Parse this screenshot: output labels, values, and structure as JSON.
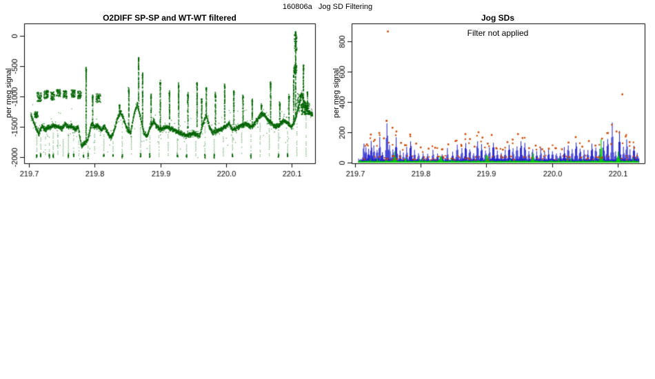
{
  "page": {
    "background": "#ffffff",
    "main_title": "160806a   Jog SD Filtering"
  },
  "chart_data": [
    {
      "type": "scatter",
      "title": "O2DIFF SP-SP and WT-WT filtered",
      "ylabel": "per meg signal",
      "xlabel": "",
      "xlim": [
        219.6926,
        220.1357
      ],
      "ylim": [
        -2100,
        205
      ],
      "x_data_range": [
        219.703,
        220.132
      ],
      "xticks": {
        "values": [
          219.7,
          219.8,
          219.9,
          220.0,
          220.1
        ],
        "labels": [
          "219.7",
          "219.8",
          "219.9",
          "220.0",
          "220.1"
        ]
      },
      "yticks": {
        "values": [
          0,
          -500,
          -1000,
          -1500,
          -2000
        ],
        "labels": [
          "0",
          "-500",
          "-1000",
          "-1500",
          "-2000"
        ]
      },
      "grid": false,
      "point_color": "#006400",
      "dropout_floor": -2000,
      "baseline_keypoints": [
        [
          219.703,
          -1300
        ],
        [
          219.71,
          -1500
        ],
        [
          219.715,
          -1620
        ],
        [
          219.72,
          -1480
        ],
        [
          219.725,
          -1550
        ],
        [
          219.73,
          -1500
        ],
        [
          219.74,
          -1480
        ],
        [
          219.75,
          -1520
        ],
        [
          219.755,
          -1450
        ],
        [
          219.76,
          -1500
        ],
        [
          219.765,
          -1480
        ],
        [
          219.77,
          -1550
        ],
        [
          219.775,
          -1500
        ],
        [
          219.78,
          -1820
        ],
        [
          219.79,
          -1700
        ],
        [
          219.795,
          -1450
        ],
        [
          219.8,
          -1500
        ],
        [
          219.805,
          -1480
        ],
        [
          219.81,
          -1550
        ],
        [
          219.815,
          -1500
        ],
        [
          219.82,
          -1600
        ],
        [
          219.825,
          -1680
        ],
        [
          219.83,
          -1550
        ],
        [
          219.835,
          -1350
        ],
        [
          219.84,
          -1250
        ],
        [
          219.845,
          -1400
        ],
        [
          219.85,
          -1550
        ],
        [
          219.855,
          -1600
        ],
        [
          219.86,
          -1300
        ],
        [
          219.865,
          -1120
        ],
        [
          219.87,
          -1350
        ],
        [
          219.875,
          -1600
        ],
        [
          219.88,
          -1650
        ],
        [
          219.885,
          -1500
        ],
        [
          219.89,
          -1400
        ],
        [
          219.895,
          -1500
        ],
        [
          219.9,
          -1550
        ],
        [
          219.91,
          -1500
        ],
        [
          219.92,
          -1550
        ],
        [
          219.93,
          -1600
        ],
        [
          219.94,
          -1650
        ],
        [
          219.95,
          -1600
        ],
        [
          219.96,
          -1650
        ],
        [
          219.965,
          -1450
        ],
        [
          219.97,
          -1320
        ],
        [
          219.975,
          -1500
        ],
        [
          219.98,
          -1600
        ],
        [
          219.99,
          -1550
        ],
        [
          220.0,
          -1500
        ],
        [
          220.005,
          -1450
        ],
        [
          220.01,
          -1550
        ],
        [
          220.02,
          -1500
        ],
        [
          220.03,
          -1450
        ],
        [
          220.04,
          -1500
        ],
        [
          220.045,
          -1420
        ],
        [
          220.05,
          -1350
        ],
        [
          220.055,
          -1280
        ],
        [
          220.06,
          -1320
        ],
        [
          220.065,
          -1400
        ],
        [
          220.07,
          -1450
        ],
        [
          220.075,
          -1500
        ],
        [
          220.08,
          -1480
        ],
        [
          220.085,
          -1420
        ],
        [
          220.09,
          -1400
        ],
        [
          220.095,
          -1450
        ],
        [
          220.1,
          -1500
        ],
        [
          220.105,
          -1400
        ],
        [
          220.11,
          -1200
        ],
        [
          220.115,
          -950
        ],
        [
          220.12,
          -1100
        ],
        [
          220.125,
          -1250
        ],
        [
          220.132,
          -1300
        ]
      ],
      "spikes": [
        [
          219.787,
          -550
        ],
        [
          219.797,
          -1000
        ],
        [
          219.838,
          -1150
        ],
        [
          219.852,
          -900
        ],
        [
          219.867,
          -380
        ],
        [
          219.873,
          -650
        ],
        [
          219.886,
          -1000
        ],
        [
          219.9,
          -780
        ],
        [
          219.914,
          -950
        ],
        [
          219.928,
          -820
        ],
        [
          219.942,
          -980
        ],
        [
          219.956,
          -790
        ],
        [
          219.963,
          -1060
        ],
        [
          219.97,
          -880
        ],
        [
          219.984,
          -980
        ],
        [
          219.998,
          -830
        ],
        [
          220.012,
          -930
        ],
        [
          220.026,
          -1020
        ],
        [
          220.04,
          -1080
        ],
        [
          220.054,
          -1150
        ],
        [
          220.068,
          -790
        ],
        [
          220.082,
          -1120
        ],
        [
          220.096,
          -1000
        ],
        [
          220.103,
          -680
        ],
        [
          220.106,
          50
        ],
        [
          220.118,
          -520
        ],
        [
          220.124,
          -950
        ]
      ],
      "dropout_columns": [
        219.712,
        219.718,
        219.725,
        219.731,
        219.737,
        219.744,
        219.752,
        219.76,
        219.768,
        219.776,
        219.783,
        219.79,
        219.8,
        219.814,
        219.828,
        219.842,
        219.856,
        219.87,
        219.884,
        219.898,
        219.912,
        219.926,
        219.94,
        219.954,
        219.968,
        219.982,
        219.996,
        220.01,
        220.024,
        220.038,
        220.052,
        220.066,
        220.08,
        220.094,
        220.108,
        220.122
      ],
      "clusters": [
        [
          219.708,
          219.714,
          -1350,
          -1250
        ],
        [
          219.712,
          219.719,
          -1080,
          -930
        ],
        [
          219.722,
          219.73,
          -1040,
          -900
        ],
        [
          219.733,
          219.739,
          -1060,
          -920
        ],
        [
          219.742,
          219.748,
          -1000,
          -880
        ],
        [
          219.752,
          219.758,
          -1030,
          -900
        ],
        [
          219.764,
          219.771,
          -1010,
          -890
        ],
        [
          219.774,
          219.78,
          -1040,
          -910
        ],
        [
          219.802,
          219.809,
          -1100,
          -950
        ],
        [
          220.104,
          220.108,
          -250,
          40
        ],
        [
          220.103,
          220.108,
          -620,
          -480
        ],
        [
          220.108,
          220.118,
          -1250,
          -950
        ],
        [
          220.115,
          220.122,
          -1300,
          -1100
        ],
        [
          220.12,
          220.127,
          -1300,
          -1100
        ]
      ]
    },
    {
      "type": "scatter",
      "title": "Jog SDs",
      "annotation": "Filter not applied",
      "ylabel": "per meg signal",
      "xlabel": "",
      "xlim": [
        219.6948,
        220.1409
      ],
      "ylim": [
        -5,
        918
      ],
      "x_data_range": [
        219.705,
        220.132
      ],
      "xticks": {
        "values": [
          219.7,
          219.8,
          219.9,
          220.0,
          220.1
        ],
        "labels": [
          "219.7",
          "219.8",
          "219.9",
          "220.0",
          "220.1"
        ]
      },
      "yticks": {
        "values": [
          0,
          200,
          400,
          600,
          800
        ],
        "labels": [
          "0",
          "200",
          "400",
          "600",
          "800"
        ]
      },
      "grid": false,
      "series": [
        {
          "name": "green-band",
          "color": "#00cc00",
          "style": "filled-band",
          "base": 5,
          "spread": 11,
          "spikes": [
            [
              219.76,
              70
            ],
            [
              219.83,
              50
            ],
            [
              219.9,
              60
            ],
            [
              219.97,
              55
            ],
            [
              220.074,
              150
            ],
            [
              220.1,
              70
            ]
          ]
        },
        {
          "name": "blue-spikes",
          "color": "#2222cc",
          "style": "vertical-lines",
          "baseline_offset": [
            4,
            20
          ],
          "spikes": [
            [
              219.713,
              125
            ],
            [
              219.716,
              95
            ],
            [
              219.72,
              80
            ],
            [
              219.724,
              140
            ],
            [
              219.728,
              110
            ],
            [
              219.733,
              90
            ],
            [
              219.737,
              150
            ],
            [
              219.741,
              70
            ],
            [
              219.748,
              250
            ],
            [
              219.752,
              120
            ],
            [
              219.757,
              95
            ],
            [
              219.762,
              170
            ],
            [
              219.768,
              80
            ],
            [
              219.773,
              60
            ],
            [
              219.778,
              95
            ],
            [
              219.784,
              150
            ],
            [
              219.79,
              85
            ],
            [
              219.796,
              70
            ],
            [
              219.803,
              60
            ],
            [
              219.81,
              55
            ],
            [
              219.818,
              75
            ],
            [
              219.825,
              65
            ],
            [
              219.832,
              60
            ],
            [
              219.84,
              85
            ],
            [
              219.848,
              70
            ],
            [
              219.855,
              115
            ],
            [
              219.862,
              95
            ],
            [
              219.868,
              135
            ],
            [
              219.874,
              100
            ],
            [
              219.88,
              65
            ],
            [
              219.886,
              145
            ],
            [
              219.892,
              120
            ],
            [
              219.898,
              85
            ],
            [
              219.904,
              95
            ],
            [
              219.91,
              140
            ],
            [
              219.916,
              75
            ],
            [
              219.922,
              65
            ],
            [
              219.928,
              85
            ],
            [
              219.934,
              115
            ],
            [
              219.94,
              95
            ],
            [
              219.946,
              125
            ],
            [
              219.952,
              150
            ],
            [
              219.958,
              135
            ],
            [
              219.964,
              80
            ],
            [
              219.97,
              95
            ],
            [
              219.976,
              70
            ],
            [
              219.982,
              85
            ],
            [
              219.988,
              65
            ],
            [
              219.994,
              75
            ],
            [
              220.0,
              85
            ],
            [
              220.006,
              65
            ],
            [
              220.012,
              75
            ],
            [
              220.018,
              95
            ],
            [
              220.024,
              115
            ],
            [
              220.03,
              85
            ],
            [
              220.036,
              145
            ],
            [
              220.042,
              95
            ],
            [
              220.048,
              75
            ],
            [
              220.054,
              85
            ],
            [
              220.06,
              125
            ],
            [
              220.066,
              105
            ],
            [
              220.072,
              85
            ],
            [
              220.078,
              135
            ],
            [
              220.084,
              170
            ],
            [
              220.091,
              230
            ],
            [
              220.096,
              70
            ],
            [
              220.102,
              190
            ],
            [
              220.108,
              95
            ],
            [
              220.113,
              150
            ],
            [
              220.118,
              85
            ],
            [
              220.124,
              115
            ],
            [
              220.129,
              75
            ]
          ]
        },
        {
          "name": "red-dots",
          "color": "#cc4400",
          "style": "points",
          "fringe_offset": [
            6,
            28
          ],
          "outliers": [
            [
              219.718,
              120
            ],
            [
              219.724,
              185
            ],
            [
              219.73,
              150
            ],
            [
              219.737,
              195
            ],
            [
              219.744,
              160
            ],
            [
              219.748,
              275
            ],
            [
              219.75,
              865
            ],
            [
              219.757,
              230
            ],
            [
              219.763,
              205
            ],
            [
              219.77,
              130
            ],
            [
              219.776,
              115
            ],
            [
              219.784,
              185
            ],
            [
              219.793,
              125
            ],
            [
              219.8,
              100
            ],
            [
              219.812,
              92
            ],
            [
              219.822,
              98
            ],
            [
              219.833,
              88
            ],
            [
              219.842,
              120
            ],
            [
              219.853,
              142
            ],
            [
              219.862,
              110
            ],
            [
              219.868,
              188
            ],
            [
              219.875,
              155
            ],
            [
              219.882,
              105
            ],
            [
              219.888,
              200
            ],
            [
              219.894,
              165
            ],
            [
              219.902,
              125
            ],
            [
              219.908,
              182
            ],
            [
              219.915,
              95
            ],
            [
              219.925,
              85
            ],
            [
              219.932,
              135
            ],
            [
              219.94,
              152
            ],
            [
              219.948,
              188
            ],
            [
              219.955,
              162
            ],
            [
              219.965,
              95
            ],
            [
              219.975,
              112
            ],
            [
              219.985,
              88
            ],
            [
              219.995,
              92
            ],
            [
              220.005,
              95
            ],
            [
              220.015,
              88
            ],
            [
              220.025,
              132
            ],
            [
              220.036,
              168
            ],
            [
              220.046,
              105
            ],
            [
              220.056,
              142
            ],
            [
              220.066,
              112
            ],
            [
              220.076,
              158
            ],
            [
              220.085,
              195
            ],
            [
              220.09,
              122
            ],
            [
              220.098,
              205
            ],
            [
              220.107,
              450
            ],
            [
              220.112,
              172
            ],
            [
              220.118,
              135
            ],
            [
              220.125,
              98
            ]
          ]
        }
      ]
    }
  ]
}
